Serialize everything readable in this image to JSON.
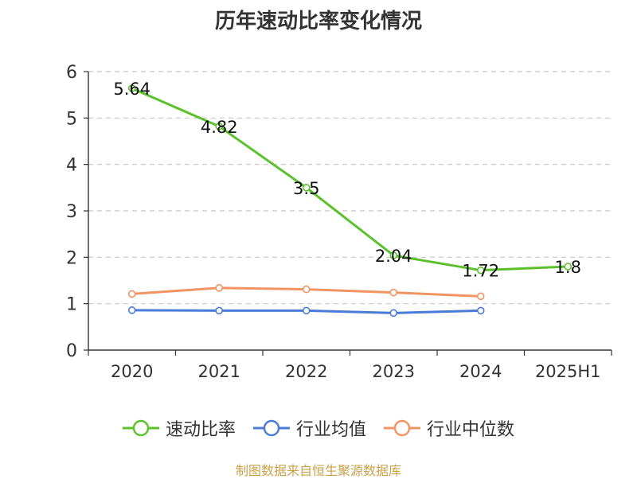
{
  "chart_data": {
    "type": "line",
    "title": "历年速动比率变化情况",
    "categories": [
      "2020",
      "2021",
      "2022",
      "2023",
      "2024",
      "2025H1"
    ],
    "series": [
      {
        "name": "速动比率",
        "color": "#5bc12b",
        "values": [
          5.64,
          4.82,
          3.5,
          2.04,
          1.72,
          1.8
        ],
        "show_labels": true
      },
      {
        "name": "行业均值",
        "color": "#4a7bd8",
        "values": [
          0.86,
          0.85,
          0.85,
          0.8,
          0.85,
          null
        ],
        "show_labels": false
      },
      {
        "name": "行业中位数",
        "color": "#f29461",
        "values": [
          1.21,
          1.34,
          1.31,
          1.24,
          1.16,
          null
        ],
        "show_labels": false
      }
    ],
    "ylim": [
      0,
      6
    ],
    "yticks": [
      0,
      1,
      2,
      3,
      4,
      5,
      6
    ],
    "grid": true,
    "legend": "bottom-center"
  },
  "source": "制图数据来自恒生聚源数据库"
}
